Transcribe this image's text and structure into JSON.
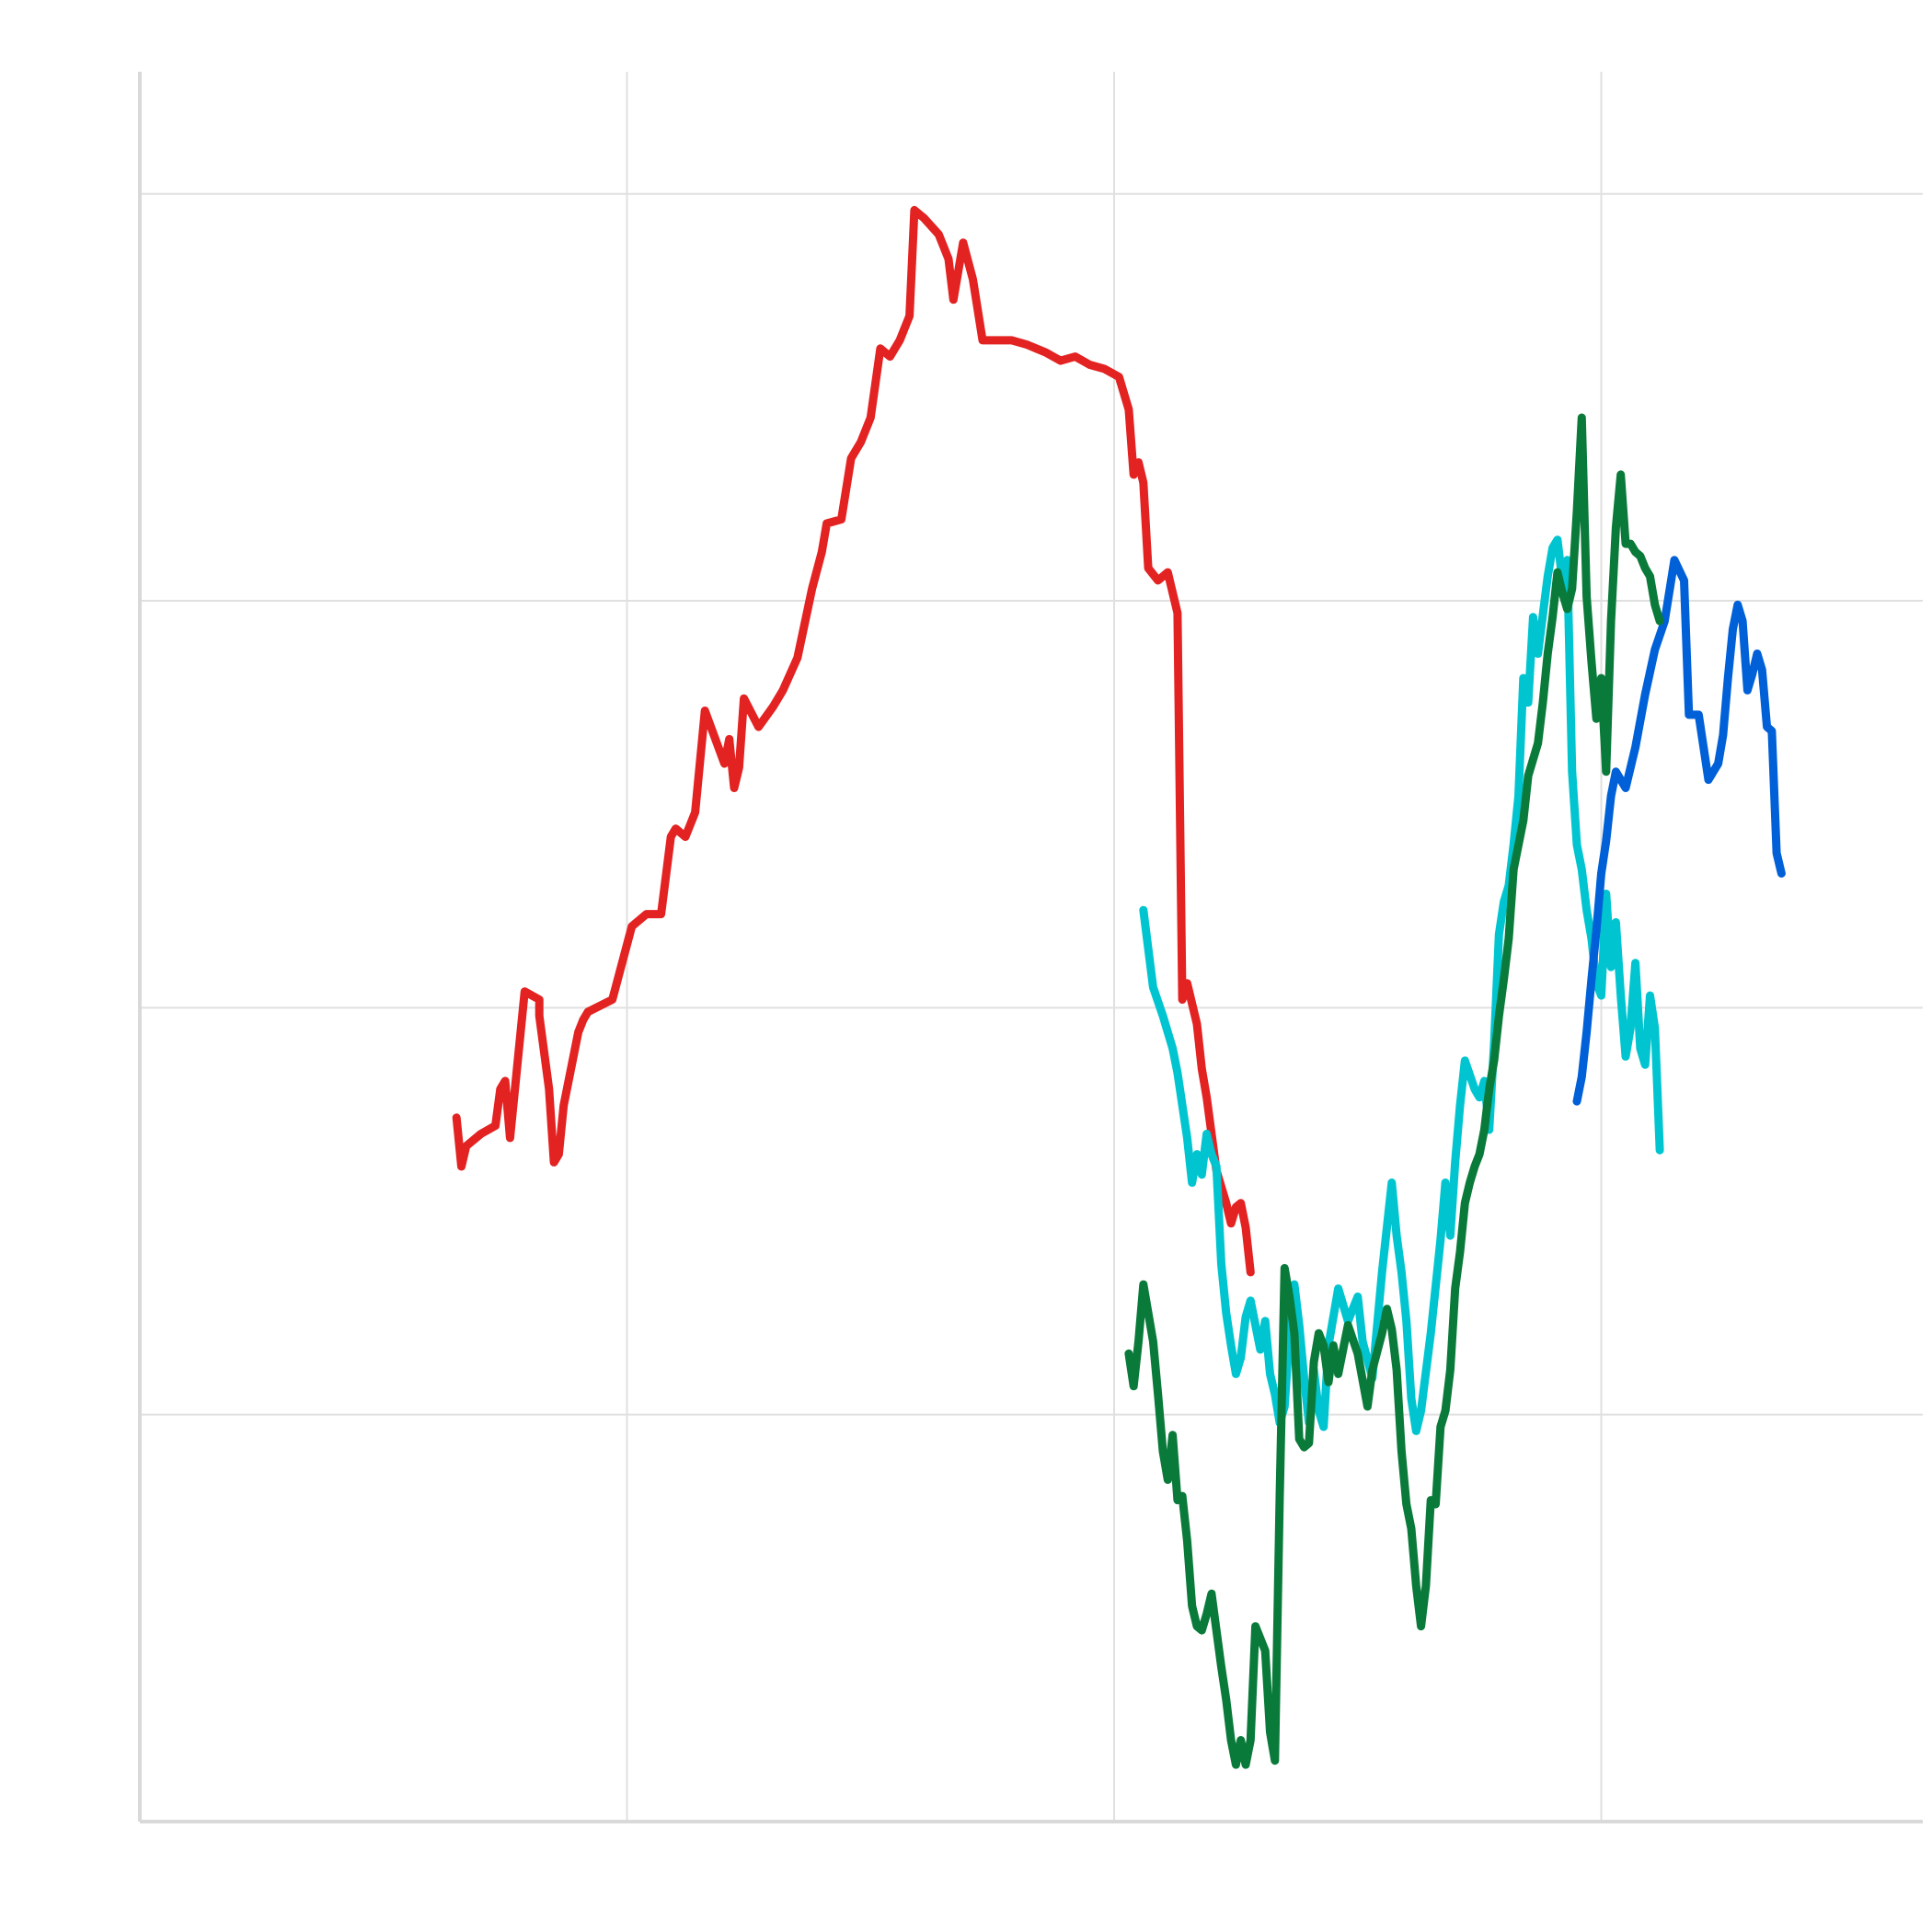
{
  "chart_data": {
    "type": "line",
    "title": "",
    "xlabel": "",
    "ylabel": "",
    "xlim": [
      0,
      3.66
    ],
    "ylim": [
      0,
      4.3
    ],
    "grid": true,
    "legend": "none",
    "x_gridlines": [
      1,
      2,
      3
    ],
    "y_gridlines": [
      1,
      2,
      3,
      4
    ],
    "series": [
      {
        "color": "#e32222",
        "points": [
          [
            0.65,
            1.73
          ],
          [
            0.66,
            1.61
          ],
          [
            0.67,
            1.66
          ],
          [
            0.7,
            1.69
          ],
          [
            0.73,
            1.71
          ],
          [
            0.74,
            1.8
          ],
          [
            0.75,
            1.82
          ],
          [
            0.76,
            1.68
          ],
          [
            0.79,
            2.04
          ],
          [
            0.82,
            2.02
          ],
          [
            0.82,
            1.98
          ],
          [
            0.84,
            1.8
          ],
          [
            0.85,
            1.62
          ],
          [
            0.86,
            1.64
          ],
          [
            0.87,
            1.76
          ],
          [
            0.9,
            1.94
          ],
          [
            0.91,
            1.97
          ],
          [
            0.92,
            1.99
          ],
          [
            0.97,
            2.02
          ],
          [
            1.01,
            2.2
          ],
          [
            1.04,
            2.23
          ],
          [
            1.07,
            2.23
          ],
          [
            1.09,
            2.42
          ],
          [
            1.1,
            2.44
          ],
          [
            1.12,
            2.42
          ],
          [
            1.14,
            2.48
          ],
          [
            1.16,
            2.73
          ],
          [
            1.2,
            2.6
          ],
          [
            1.21,
            2.66
          ],
          [
            1.22,
            2.54
          ],
          [
            1.23,
            2.59
          ],
          [
            1.24,
            2.76
          ],
          [
            1.27,
            2.69
          ],
          [
            1.3,
            2.74
          ],
          [
            1.32,
            2.78
          ],
          [
            1.35,
            2.86
          ],
          [
            1.38,
            3.03
          ],
          [
            1.4,
            3.12
          ],
          [
            1.41,
            3.19
          ],
          [
            1.44,
            3.2
          ],
          [
            1.46,
            3.35
          ],
          [
            1.48,
            3.39
          ],
          [
            1.5,
            3.45
          ],
          [
            1.52,
            3.62
          ],
          [
            1.54,
            3.6
          ],
          [
            1.56,
            3.64
          ],
          [
            1.58,
            3.7
          ],
          [
            1.59,
            3.96
          ],
          [
            1.61,
            3.94
          ],
          [
            1.64,
            3.9
          ],
          [
            1.66,
            3.84
          ],
          [
            1.67,
            3.74
          ],
          [
            1.68,
            3.81
          ],
          [
            1.69,
            3.88
          ],
          [
            1.71,
            3.79
          ],
          [
            1.73,
            3.64
          ],
          [
            1.76,
            3.64
          ],
          [
            1.79,
            3.64
          ],
          [
            1.82,
            3.63
          ],
          [
            1.84,
            3.62
          ],
          [
            1.86,
            3.61
          ],
          [
            1.89,
            3.59
          ],
          [
            1.92,
            3.6
          ],
          [
            1.95,
            3.58
          ],
          [
            1.98,
            3.57
          ],
          [
            2.01,
            3.55
          ],
          [
            2.03,
            3.47
          ],
          [
            2.04,
            3.31
          ],
          [
            2.05,
            3.34
          ],
          [
            2.06,
            3.29
          ],
          [
            2.07,
            3.08
          ],
          [
            2.09,
            3.05
          ],
          [
            2.11,
            3.07
          ],
          [
            2.13,
            2.97
          ],
          [
            2.14,
            2.02
          ],
          [
            2.15,
            2.06
          ],
          [
            2.17,
            1.96
          ],
          [
            2.18,
            1.85
          ],
          [
            2.19,
            1.78
          ],
          [
            2.2,
            1.69
          ],
          [
            2.21,
            1.6
          ],
          [
            2.22,
            1.56
          ],
          [
            2.23,
            1.52
          ],
          [
            2.24,
            1.47
          ],
          [
            2.25,
            1.51
          ],
          [
            2.26,
            1.52
          ],
          [
            2.27,
            1.46
          ],
          [
            2.28,
            1.35
          ]
        ]
      },
      {
        "color": "#00c5d0",
        "points": [
          [
            2.06,
            2.24
          ],
          [
            2.08,
            2.05
          ],
          [
            2.1,
            1.98
          ],
          [
            2.12,
            1.9
          ],
          [
            2.13,
            1.84
          ],
          [
            2.15,
            1.68
          ],
          [
            2.16,
            1.57
          ],
          [
            2.17,
            1.64
          ],
          [
            2.18,
            1.59
          ],
          [
            2.19,
            1.69
          ],
          [
            2.2,
            1.64
          ],
          [
            2.21,
            1.61
          ],
          [
            2.22,
            1.37
          ],
          [
            2.23,
            1.25
          ],
          [
            2.24,
            1.17
          ],
          [
            2.25,
            1.1
          ],
          [
            2.26,
            1.14
          ],
          [
            2.27,
            1.24
          ],
          [
            2.28,
            1.28
          ],
          [
            2.3,
            1.16
          ],
          [
            2.31,
            1.23
          ],
          [
            2.32,
            1.1
          ],
          [
            2.33,
            1.05
          ],
          [
            2.34,
            0.98
          ],
          [
            2.35,
            1.02
          ],
          [
            2.36,
            1.2
          ],
          [
            2.37,
            1.32
          ],
          [
            2.38,
            1.22
          ],
          [
            2.39,
            1.09
          ],
          [
            2.4,
            0.98
          ],
          [
            2.41,
            1.11
          ],
          [
            2.42,
            1.01
          ],
          [
            2.43,
            0.97
          ],
          [
            2.44,
            1.17
          ],
          [
            2.46,
            1.31
          ],
          [
            2.48,
            1.23
          ],
          [
            2.5,
            1.29
          ],
          [
            2.51,
            1.18
          ],
          [
            2.53,
            1.09
          ],
          [
            2.55,
            1.35
          ],
          [
            2.57,
            1.57
          ],
          [
            2.58,
            1.44
          ],
          [
            2.59,
            1.35
          ],
          [
            2.6,
            1.23
          ],
          [
            2.61,
            1.04
          ],
          [
            2.62,
            0.96
          ],
          [
            2.63,
            1.01
          ],
          [
            2.65,
            1.2
          ],
          [
            2.67,
            1.43
          ],
          [
            2.68,
            1.57
          ],
          [
            2.69,
            1.44
          ],
          [
            2.7,
            1.62
          ],
          [
            2.71,
            1.76
          ],
          [
            2.72,
            1.87
          ],
          [
            2.74,
            1.8
          ],
          [
            2.75,
            1.78
          ],
          [
            2.76,
            1.82
          ],
          [
            2.77,
            1.7
          ],
          [
            2.78,
            1.91
          ],
          [
            2.79,
            2.18
          ],
          [
            2.8,
            2.26
          ],
          [
            2.81,
            2.3
          ],
          [
            2.82,
            2.4
          ],
          [
            2.83,
            2.52
          ],
          [
            2.84,
            2.81
          ],
          [
            2.85,
            2.75
          ],
          [
            2.86,
            2.96
          ],
          [
            2.87,
            2.87
          ],
          [
            2.89,
            3.06
          ],
          [
            2.9,
            3.13
          ],
          [
            2.91,
            3.15
          ],
          [
            2.92,
            3.05
          ],
          [
            2.93,
            3.1
          ],
          [
            2.94,
            2.58
          ],
          [
            2.95,
            2.4
          ],
          [
            2.96,
            2.34
          ],
          [
            2.97,
            2.24
          ],
          [
            2.98,
            2.17
          ],
          [
            2.99,
            2.06
          ],
          [
            3.0,
            2.03
          ],
          [
            3.01,
            2.28
          ],
          [
            3.02,
            2.1
          ],
          [
            3.03,
            2.21
          ],
          [
            3.04,
            2.03
          ],
          [
            3.05,
            1.88
          ],
          [
            3.06,
            1.95
          ],
          [
            3.07,
            2.11
          ],
          [
            3.08,
            1.9
          ],
          [
            3.09,
            1.86
          ],
          [
            3.1,
            2.03
          ],
          [
            3.11,
            1.95
          ],
          [
            3.12,
            1.65
          ]
        ]
      },
      {
        "color": "#0060d8",
        "points": [
          [
            2.95,
            1.77
          ],
          [
            2.96,
            1.83
          ],
          [
            2.97,
            1.94
          ],
          [
            2.98,
            2.07
          ],
          [
            2.99,
            2.19
          ],
          [
            3.0,
            2.33
          ],
          [
            3.01,
            2.41
          ],
          [
            3.02,
            2.52
          ],
          [
            3.03,
            2.58
          ],
          [
            3.05,
            2.54
          ],
          [
            3.07,
            2.64
          ],
          [
            3.09,
            2.77
          ],
          [
            3.11,
            2.88
          ],
          [
            3.13,
            2.95
          ],
          [
            3.15,
            3.1
          ],
          [
            3.17,
            3.05
          ],
          [
            3.18,
            2.72
          ],
          [
            3.2,
            2.72
          ],
          [
            3.22,
            2.56
          ],
          [
            3.24,
            2.6
          ],
          [
            3.25,
            2.67
          ],
          [
            3.26,
            2.81
          ],
          [
            3.27,
            2.93
          ],
          [
            3.28,
            2.99
          ],
          [
            3.29,
            2.95
          ],
          [
            3.3,
            2.78
          ],
          [
            3.31,
            2.82
          ],
          [
            3.32,
            2.87
          ],
          [
            3.33,
            2.83
          ],
          [
            3.34,
            2.69
          ],
          [
            3.35,
            2.68
          ],
          [
            3.36,
            2.38
          ],
          [
            3.37,
            2.33
          ]
        ]
      },
      {
        "color": "#0a7a3a",
        "points": [
          [
            2.03,
            1.15
          ],
          [
            2.04,
            1.07
          ],
          [
            2.05,
            1.18
          ],
          [
            2.06,
            1.32
          ],
          [
            2.07,
            1.25
          ],
          [
            2.08,
            1.18
          ],
          [
            2.09,
            1.05
          ],
          [
            2.1,
            0.91
          ],
          [
            2.11,
            0.84
          ],
          [
            2.12,
            0.95
          ],
          [
            2.13,
            0.79
          ],
          [
            2.14,
            0.8
          ],
          [
            2.15,
            0.69
          ],
          [
            2.16,
            0.53
          ],
          [
            2.17,
            0.48
          ],
          [
            2.18,
            0.47
          ],
          [
            2.19,
            0.51
          ],
          [
            2.2,
            0.56
          ],
          [
            2.22,
            0.38
          ],
          [
            2.23,
            0.3
          ],
          [
            2.24,
            0.2
          ],
          [
            2.25,
            0.14
          ],
          [
            2.26,
            0.2
          ],
          [
            2.27,
            0.14
          ],
          [
            2.28,
            0.2
          ],
          [
            2.29,
            0.48
          ],
          [
            2.31,
            0.42
          ],
          [
            2.32,
            0.22
          ],
          [
            2.33,
            0.15
          ],
          [
            2.34,
            0.8
          ],
          [
            2.35,
            1.36
          ],
          [
            2.36,
            1.29
          ],
          [
            2.37,
            1.2
          ],
          [
            2.38,
            0.94
          ],
          [
            2.39,
            0.92
          ],
          [
            2.4,
            0.93
          ],
          [
            2.41,
            1.13
          ],
          [
            2.42,
            1.2
          ],
          [
            2.43,
            1.17
          ],
          [
            2.44,
            1.08
          ],
          [
            2.45,
            1.17
          ],
          [
            2.46,
            1.1
          ],
          [
            2.48,
            1.22
          ],
          [
            2.5,
            1.15
          ],
          [
            2.52,
            1.02
          ],
          [
            2.53,
            1.11
          ],
          [
            2.55,
            1.2
          ],
          [
            2.56,
            1.26
          ],
          [
            2.57,
            1.21
          ],
          [
            2.58,
            1.11
          ],
          [
            2.59,
            0.91
          ],
          [
            2.6,
            0.78
          ],
          [
            2.61,
            0.72
          ],
          [
            2.62,
            0.58
          ],
          [
            2.63,
            0.48
          ],
          [
            2.64,
            0.58
          ],
          [
            2.65,
            0.79
          ],
          [
            2.66,
            0.78
          ],
          [
            2.67,
            0.97
          ],
          [
            2.68,
            1.01
          ],
          [
            2.69,
            1.11
          ],
          [
            2.7,
            1.31
          ],
          [
            2.71,
            1.4
          ],
          [
            2.72,
            1.52
          ],
          [
            2.73,
            1.57
          ],
          [
            2.74,
            1.61
          ],
          [
            2.75,
            1.64
          ],
          [
            2.76,
            1.7
          ],
          [
            2.77,
            1.8
          ],
          [
            2.78,
            1.87
          ],
          [
            2.79,
            1.98
          ],
          [
            2.8,
            2.07
          ],
          [
            2.81,
            2.17
          ],
          [
            2.82,
            2.34
          ],
          [
            2.84,
            2.46
          ],
          [
            2.85,
            2.57
          ],
          [
            2.86,
            2.61
          ],
          [
            2.87,
            2.65
          ],
          [
            2.88,
            2.75
          ],
          [
            2.89,
            2.87
          ],
          [
            2.9,
            2.96
          ],
          [
            2.91,
            3.07
          ],
          [
            2.92,
            3.02
          ],
          [
            2.93,
            2.98
          ],
          [
            2.94,
            3.03
          ],
          [
            2.95,
            3.22
          ],
          [
            2.96,
            3.45
          ],
          [
            2.97,
            3.01
          ],
          [
            2.98,
            2.85
          ],
          [
            2.99,
            2.71
          ],
          [
            3.0,
            2.81
          ],
          [
            3.01,
            2.58
          ],
          [
            3.02,
            2.95
          ],
          [
            3.03,
            3.18
          ],
          [
            3.04,
            3.31
          ],
          [
            3.05,
            3.14
          ],
          [
            3.06,
            3.14
          ],
          [
            3.07,
            3.12
          ],
          [
            3.08,
            3.11
          ],
          [
            3.09,
            3.08
          ],
          [
            3.1,
            3.06
          ],
          [
            3.11,
            2.99
          ],
          [
            3.12,
            2.95
          ]
        ]
      }
    ]
  }
}
